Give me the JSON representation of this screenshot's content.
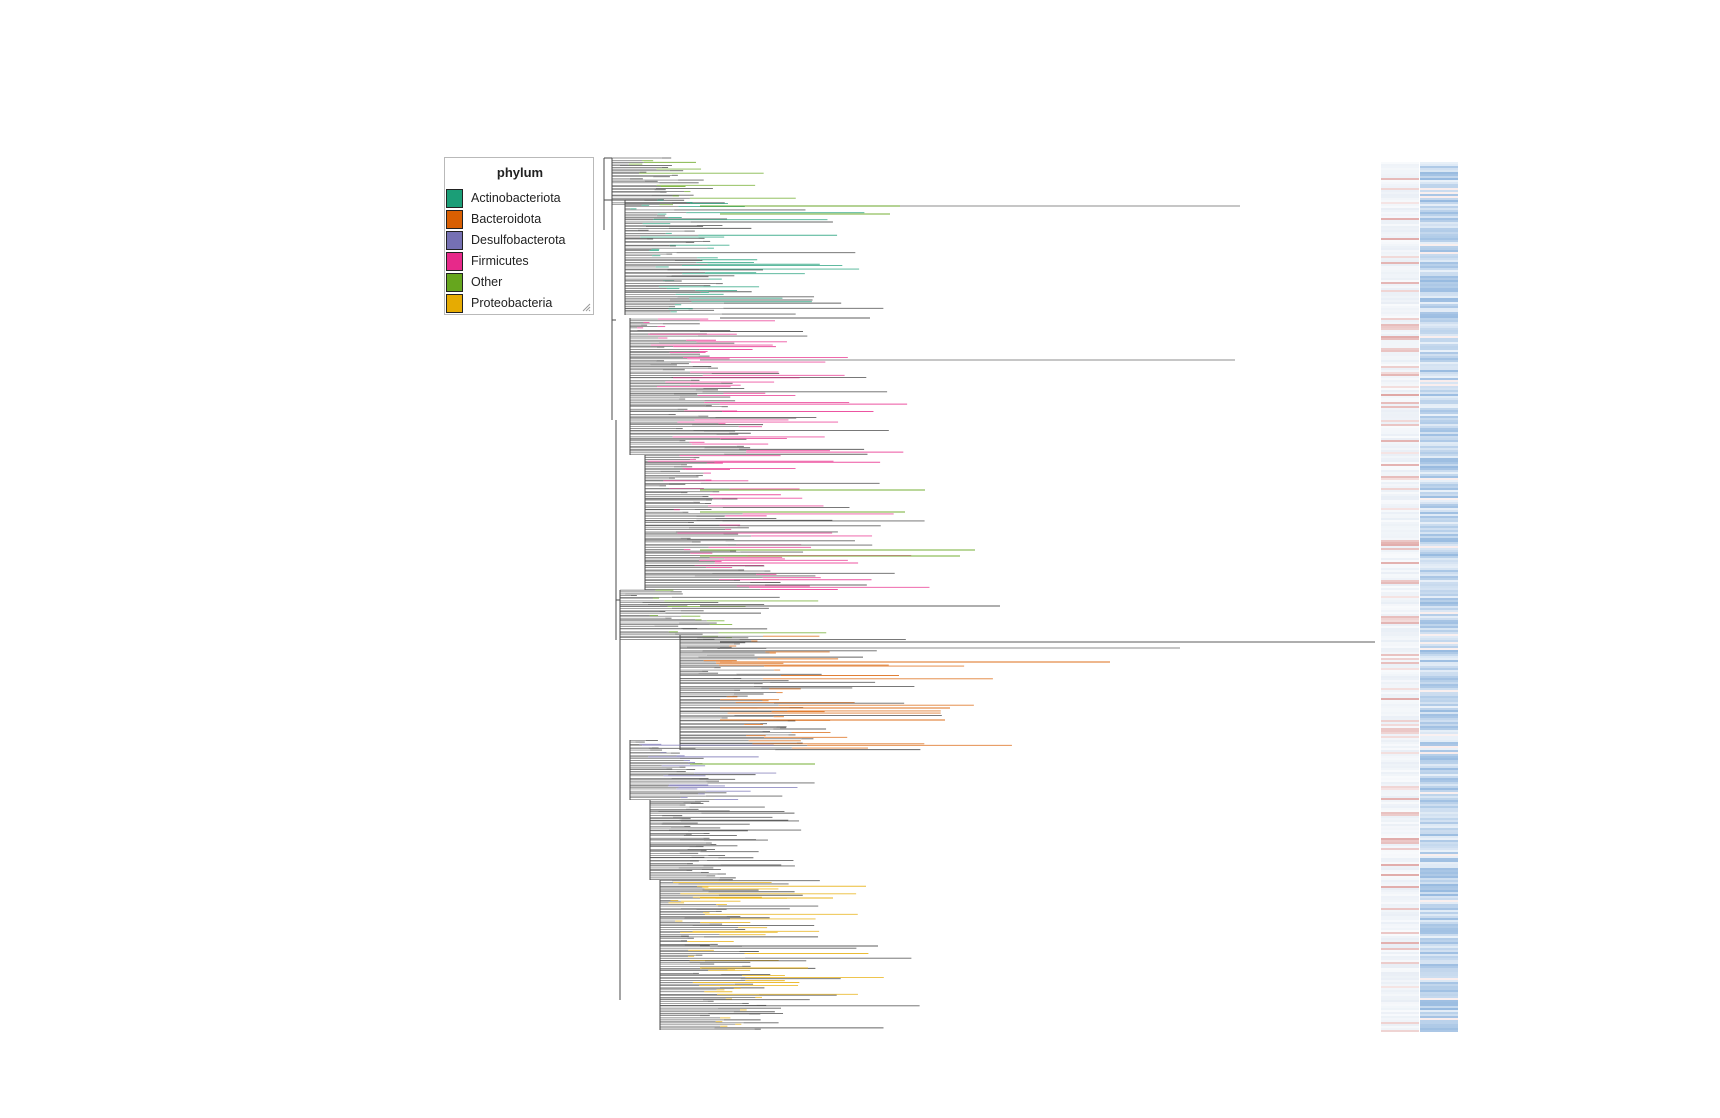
{
  "legend": {
    "title": "phylum",
    "items": [
      {
        "label": "Actinobacteriota",
        "color": "#1b9e77"
      },
      {
        "label": "Bacteroidota",
        "color": "#d95f02"
      },
      {
        "label": "Desulfobacterota",
        "color": "#7570b3"
      },
      {
        "label": "Firmicutes",
        "color": "#e7298a"
      },
      {
        "label": "Other",
        "color": "#66a61e"
      },
      {
        "label": "Proteobacteria",
        "color": "#e6ab02"
      }
    ]
  },
  "colors": {
    "branch": "#4a4a4a",
    "heatmap_positive": "#3b7dc4",
    "heatmap_negative": "#c0504d"
  },
  "icons": {
    "resize_handle": "resize-grip-icon"
  }
}
